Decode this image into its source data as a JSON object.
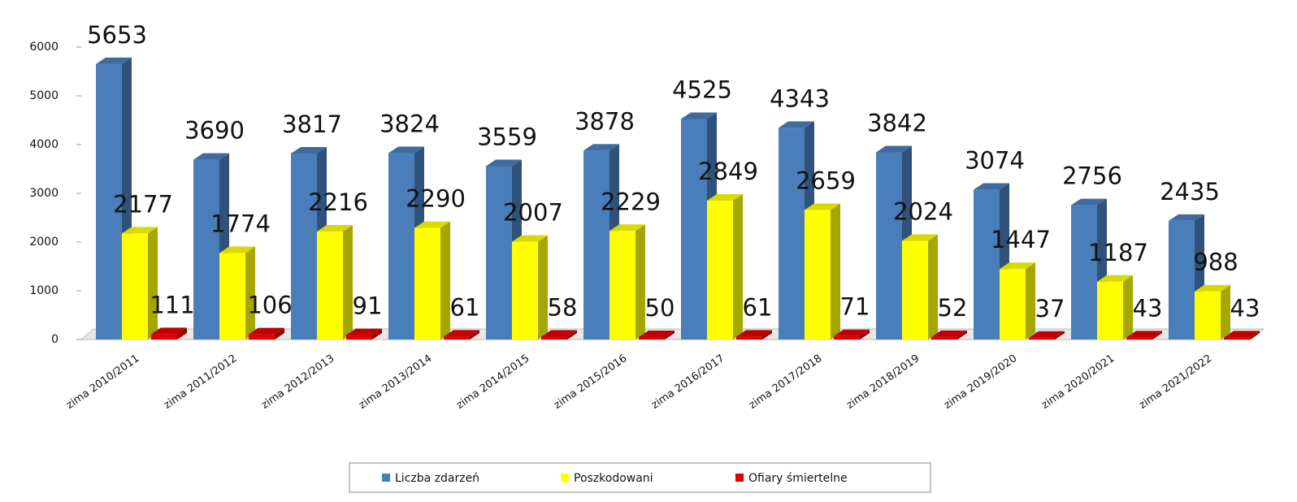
{
  "chart_data": {
    "type": "bar",
    "categories": [
      "zima 2010/2011",
      "zima 2011/2012",
      "zima 2012/2013",
      "zima 2013/2014",
      "zima 2014/2015",
      "zima 2015/2016",
      "zima 2016/2017",
      "zima 2017/2018",
      "zima 2018/2019",
      "zima 2019/2020",
      "zima 2020/2021",
      "zima 2021/2022"
    ],
    "series": [
      {
        "name": "Liczba zdarzeń",
        "color": "#4a7ebb",
        "values": [
          5653,
          3690,
          3817,
          3824,
          3559,
          3878,
          4525,
          4343,
          3842,
          3074,
          2756,
          2435
        ]
      },
      {
        "name": "Poszkodowani",
        "color": "#ffff00",
        "values": [
          2177,
          1774,
          2216,
          2290,
          2007,
          2229,
          2849,
          2659,
          2024,
          1447,
          1187,
          988
        ]
      },
      {
        "name": "Ofiary śmiertelne",
        "color": "#e00000",
        "values": [
          111,
          106,
          91,
          61,
          58,
          50,
          61,
          71,
          52,
          37,
          43,
          43
        ]
      }
    ],
    "ylim": [
      0,
      6000
    ],
    "yticks": [
      0,
      1000,
      2000,
      3000,
      4000,
      5000,
      6000
    ],
    "legend": "bottom"
  }
}
